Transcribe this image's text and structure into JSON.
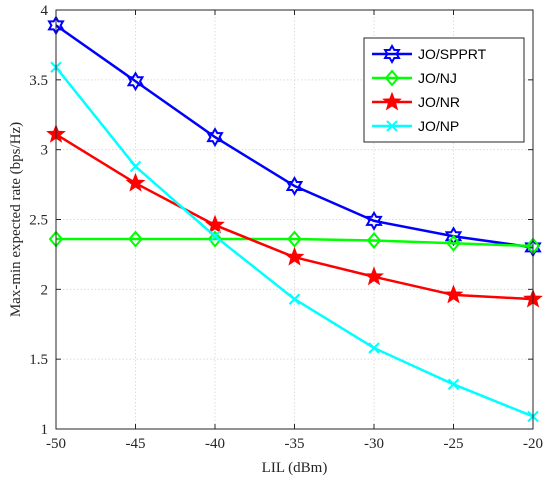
{
  "chart_data": {
    "type": "line",
    "title": "",
    "xlabel": "LIL (dBm)",
    "ylabel": "Max-min expected rate (bps/Hz)",
    "xlim": [
      -50,
      -20
    ],
    "ylim": [
      1,
      4
    ],
    "xticks": [
      -50,
      -45,
      -40,
      -35,
      -30,
      -25,
      -20
    ],
    "yticks": [
      1,
      1.5,
      2,
      2.5,
      3,
      3.5,
      4
    ],
    "grid": true,
    "legend_position": "top-right",
    "x": [
      -50,
      -45,
      -40,
      -35,
      -30,
      -25,
      -20
    ],
    "series": [
      {
        "name": "JO/SPPRT",
        "color": "#0000ff",
        "marker": "hexagram",
        "values": [
          3.89,
          3.49,
          3.09,
          2.74,
          2.49,
          2.38,
          2.3
        ]
      },
      {
        "name": "JO/NJ",
        "color": "#00ff00",
        "marker": "diamond",
        "values": [
          2.36,
          2.36,
          2.36,
          2.36,
          2.35,
          2.33,
          2.31
        ]
      },
      {
        "name": "JO/NR",
        "color": "#ff0000",
        "marker": "star",
        "values": [
          3.11,
          2.76,
          2.46,
          2.23,
          2.09,
          1.96,
          1.93
        ]
      },
      {
        "name": "JO/NP",
        "color": "#00ffff",
        "marker": "x",
        "values": [
          3.59,
          2.88,
          2.38,
          1.93,
          1.58,
          1.32,
          1.09
        ]
      }
    ]
  }
}
